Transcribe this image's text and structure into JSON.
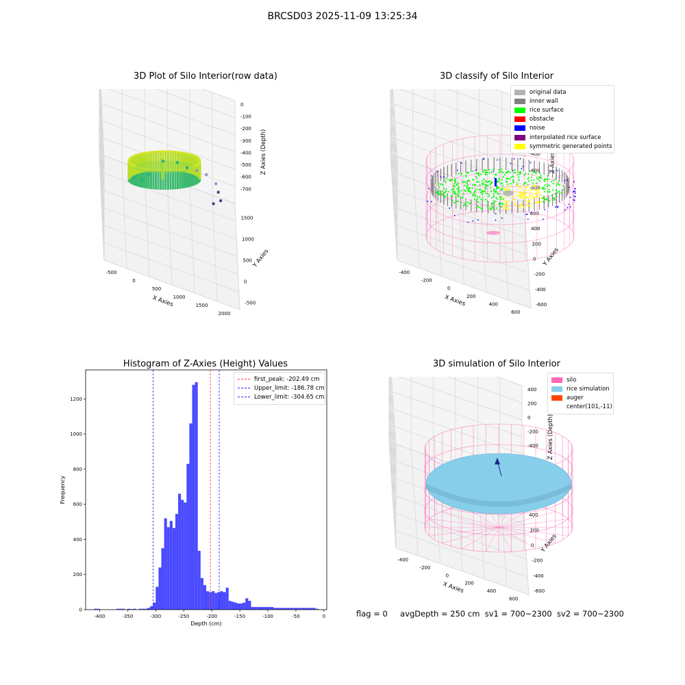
{
  "suptitle": "BRCSD03 2025-11-09 13:25:34",
  "colors": {
    "original": "#b3b3b3",
    "inner_wall": "#808080",
    "rice_surface": "#00ff00",
    "obstacle": "#ff0000",
    "noise": "#0000ff",
    "interpolated": "#800080",
    "symmetric": "#ffff00",
    "silo": "#ff69b4",
    "rice_sim": "#87ceeb",
    "auger": "#ff4500",
    "hist_bar": "#4a4aff",
    "peak_line": "#ff3030",
    "limit_line": "#2020ff"
  },
  "footer": {
    "flag": "flag = 0",
    "avg": "avgDepth = 250 cm",
    "sv1": "sv1 = 700~2300",
    "sv2": "sv2 = 700~2300"
  },
  "chart_data": [
    {
      "type": "scatter",
      "title": "3D Plot of Silo Interior(row data)",
      "xlabel": "X Axies",
      "ylabel": "Y Axies",
      "zlabel": "Z Axies (Depth)",
      "x_ticks": [
        "-500",
        "0",
        "500",
        "1000",
        "1500",
        "2000"
      ],
      "y_ticks": [
        "-500",
        "0",
        "500",
        "1000",
        "1500"
      ],
      "z_ticks": [
        "0",
        "-100",
        "-200",
        "-300",
        "-400",
        "-500",
        "-600",
        "-700"
      ],
      "xlim": [
        -650,
        2100
      ],
      "ylim": [
        -650,
        1700
      ],
      "zlim": [
        -750,
        0
      ],
      "colormap": "viridis",
      "points": [
        {
          "x": 0,
          "y": 200,
          "z": -300
        },
        {
          "x": 150,
          "y": 300,
          "z": -330
        },
        {
          "x": 300,
          "y": 400,
          "z": -300
        },
        {
          "x": 600,
          "y": 700,
          "z": -260
        },
        {
          "x": 900,
          "y": 900,
          "z": -300
        },
        {
          "x": 1100,
          "y": 1000,
          "z": -350
        },
        {
          "x": 1300,
          "y": 1100,
          "z": -380
        },
        {
          "x": 1500,
          "y": 1200,
          "z": -420
        },
        {
          "x": 1700,
          "y": 1350,
          "z": -520
        },
        {
          "x": 1750,
          "y": 1400,
          "z": -600
        },
        {
          "x": 1800,
          "y": 1450,
          "z": -680
        },
        {
          "x": 1650,
          "y": 1350,
          "z": -690
        }
      ]
    },
    {
      "type": "scatter",
      "title": "3D classify of Silo Interior",
      "xlabel": "X Axies",
      "ylabel": "Y Axies",
      "zlabel": "Z Axies (Depth)",
      "x_ticks": [
        "-400",
        "-200",
        "0",
        "200",
        "400",
        "600"
      ],
      "y_ticks": [
        "-600",
        "-400",
        "-200",
        "0",
        "200",
        "400",
        "600"
      ],
      "z_ticks": [
        "200",
        "0",
        "-200",
        "-400",
        "-600",
        "-800"
      ],
      "xlim": [
        -500,
        700
      ],
      "ylim": [
        -650,
        650
      ],
      "zlim": [
        -900,
        250
      ],
      "legend": [
        "original data",
        "inner wall",
        "rice surface",
        "obstacle",
        "noise",
        "interpolated rice surface",
        "symmetric generated points"
      ]
    },
    {
      "type": "bar",
      "title": "Histogram of Z-Axies (Height) Values",
      "xlabel": "Depth (cm)",
      "ylabel": "Frequency",
      "x_ticks": [
        -400,
        -350,
        -300,
        -250,
        -200,
        -150,
        -100,
        -50,
        0
      ],
      "y_ticks": [
        0,
        200,
        400,
        600,
        800,
        1000,
        1200
      ],
      "xlim": [
        -425,
        5
      ],
      "ylim": [
        0,
        1365
      ],
      "bin_width": 5,
      "bins_start": [
        -410,
        -405,
        -370,
        -365,
        -360,
        -350,
        -345,
        -340,
        -330,
        -325,
        -320,
        -315,
        -310,
        -305,
        -300,
        -295,
        -290,
        -285,
        -280,
        -275,
        -270,
        -265,
        -260,
        -255,
        -250,
        -245,
        -240,
        -235,
        -230,
        -225,
        -220,
        -215,
        -210,
        -205,
        -200,
        -195,
        -190,
        -185,
        -180,
        -175,
        -170,
        -165,
        -160,
        -155,
        -150,
        -145,
        -140,
        -135,
        -130,
        -125,
        -120,
        -115,
        -110,
        -105,
        -100,
        -95,
        -90,
        -85,
        -80,
        -75,
        -70,
        -65,
        -60,
        -55,
        -50,
        -45,
        -40,
        -35,
        -30,
        -25,
        -20,
        -15
      ],
      "values": [
        5,
        5,
        5,
        5,
        5,
        5,
        3,
        5,
        5,
        5,
        5,
        10,
        20,
        40,
        130,
        240,
        350,
        520,
        470,
        505,
        465,
        545,
        660,
        625,
        610,
        830,
        1060,
        1280,
        1295,
        335,
        180,
        140,
        105,
        100,
        105,
        95,
        100,
        105,
        100,
        125,
        50,
        45,
        40,
        35,
        35,
        40,
        65,
        50,
        15,
        15,
        15,
        15,
        15,
        15,
        15,
        15,
        10,
        10,
        10,
        10,
        10,
        10,
        10,
        10,
        10,
        10,
        10,
        10,
        10,
        10,
        10,
        5
      ],
      "vlines": [
        {
          "label": "first_peak: -202.49 cm",
          "x": -202.49,
          "style": "peak"
        },
        {
          "label": "Upper_limit: -186.78 cm",
          "x": -186.78,
          "style": "limit"
        },
        {
          "label": "Lower_limit: -304.65 cm",
          "x": -304.65,
          "style": "limit"
        }
      ]
    },
    {
      "type": "area",
      "title": "3D simulation of Silo Interior",
      "xlabel": "X Axies",
      "ylabel": "Y Axies",
      "zlabel": "Z Axies (Depth)",
      "x_ticks": [
        "-400",
        "-200",
        "0",
        "200",
        "400",
        "600"
      ],
      "y_ticks": [
        "-600",
        "-400",
        "-200",
        "0",
        "200",
        "400",
        "600"
      ],
      "z_ticks": [
        "400",
        "200",
        "0",
        "-200",
        "-400",
        "-600",
        "-800"
      ],
      "xlim": [
        -500,
        700
      ],
      "ylim": [
        -650,
        650
      ],
      "zlim": [
        -900,
        450
      ],
      "legend": [
        "silo",
        "rice simulation",
        "auger",
        "center(101,-11)"
      ]
    }
  ]
}
